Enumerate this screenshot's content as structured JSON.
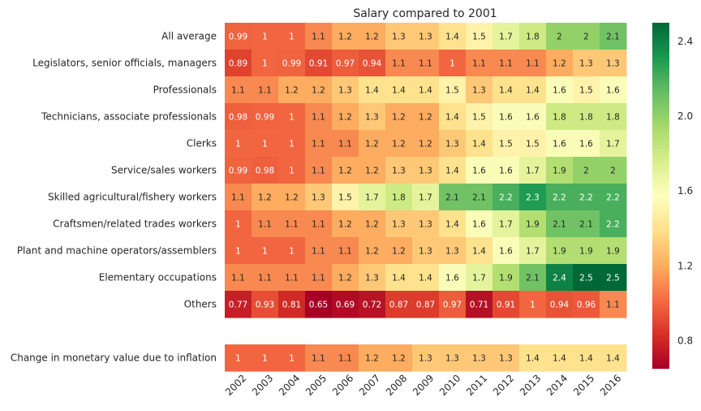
{
  "chart_data": {
    "type": "heatmap",
    "title": "Salary compared to 2001",
    "x": [
      "2002",
      "2003",
      "2004",
      "2005",
      "2006",
      "2007",
      "2008",
      "2009",
      "2010",
      "2011",
      "2012",
      "2013",
      "2014",
      "2015",
      "2016"
    ],
    "rows": [
      {
        "label": "All average",
        "values": [
          0.99,
          1.0,
          1.0,
          1.1,
          1.2,
          1.2,
          1.3,
          1.3,
          1.4,
          1.5,
          1.7,
          1.8,
          2.0,
          2.0,
          2.1
        ],
        "display": [
          "0.99",
          "1",
          "1",
          "1.1",
          "1.2",
          "1.2",
          "1.3",
          "1.3",
          "1.4",
          "1.5",
          "1.7",
          "1.8",
          "2",
          "2",
          "2.1"
        ]
      },
      {
        "label": "Legislators, senior officials, managers",
        "values": [
          0.89,
          1.0,
          0.99,
          0.91,
          0.97,
          0.94,
          1.1,
          1.1,
          1.0,
          1.1,
          1.1,
          1.1,
          1.2,
          1.3,
          1.3
        ],
        "display": [
          "0.89",
          "1",
          "0.99",
          "0.91",
          "0.97",
          "0.94",
          "1.1",
          "1.1",
          "1",
          "1.1",
          "1.1",
          "1.1",
          "1.2",
          "1.3",
          "1.3"
        ]
      },
      {
        "label": "Professionals",
        "values": [
          1.1,
          1.1,
          1.2,
          1.2,
          1.3,
          1.4,
          1.4,
          1.4,
          1.5,
          1.3,
          1.4,
          1.4,
          1.6,
          1.5,
          1.6
        ],
        "display": [
          "1.1",
          "1.1",
          "1.2",
          "1.2",
          "1.3",
          "1.4",
          "1.4",
          "1.4",
          "1.5",
          "1.3",
          "1.4",
          "1.4",
          "1.6",
          "1.5",
          "1.6"
        ]
      },
      {
        "label": "Technicians, associate professionals",
        "values": [
          0.98,
          0.99,
          1.0,
          1.1,
          1.2,
          1.3,
          1.2,
          1.2,
          1.4,
          1.5,
          1.6,
          1.6,
          1.8,
          1.8,
          1.8
        ],
        "display": [
          "0.98",
          "0.99",
          "1",
          "1.1",
          "1.2",
          "1.3",
          "1.2",
          "1.2",
          "1.4",
          "1.5",
          "1.6",
          "1.6",
          "1.8",
          "1.8",
          "1.8"
        ]
      },
      {
        "label": "Clerks",
        "values": [
          1.0,
          1.0,
          1.0,
          1.1,
          1.1,
          1.2,
          1.2,
          1.2,
          1.3,
          1.4,
          1.5,
          1.5,
          1.6,
          1.6,
          1.7
        ],
        "display": [
          "1",
          "1",
          "1",
          "1.1",
          "1.1",
          "1.2",
          "1.2",
          "1.2",
          "1.3",
          "1.4",
          "1.5",
          "1.5",
          "1.6",
          "1.6",
          "1.7"
        ]
      },
      {
        "label": "Service/sales workers",
        "values": [
          0.99,
          0.98,
          1.0,
          1.1,
          1.2,
          1.2,
          1.3,
          1.3,
          1.4,
          1.6,
          1.6,
          1.7,
          1.9,
          2.0,
          2.0
        ],
        "display": [
          "0.99",
          "0.98",
          "1",
          "1.1",
          "1.2",
          "1.2",
          "1.3",
          "1.3",
          "1.4",
          "1.6",
          "1.6",
          "1.7",
          "1.9",
          "2",
          "2"
        ]
      },
      {
        "label": "Skilled agricultural/fishery workers",
        "values": [
          1.1,
          1.2,
          1.2,
          1.3,
          1.5,
          1.7,
          1.8,
          1.7,
          2.1,
          2.1,
          2.2,
          2.3,
          2.2,
          2.2,
          2.2
        ],
        "display": [
          "1.1",
          "1.2",
          "1.2",
          "1.3",
          "1.5",
          "1.7",
          "1.8",
          "1.7",
          "2.1",
          "2.1",
          "2.2",
          "2.3",
          "2.2",
          "2.2",
          "2.2"
        ]
      },
      {
        "label": "Craftsmen/related trades workers",
        "values": [
          1.0,
          1.1,
          1.1,
          1.1,
          1.2,
          1.2,
          1.3,
          1.3,
          1.4,
          1.6,
          1.7,
          1.9,
          2.1,
          2.1,
          2.2
        ],
        "display": [
          "1",
          "1.1",
          "1.1",
          "1.1",
          "1.2",
          "1.2",
          "1.3",
          "1.3",
          "1.4",
          "1.6",
          "1.7",
          "1.9",
          "2.1",
          "2.1",
          "2.2"
        ]
      },
      {
        "label": "Plant and machine operators/assemblers",
        "values": [
          1.0,
          1.0,
          1.0,
          1.1,
          1.1,
          1.2,
          1.2,
          1.3,
          1.3,
          1.4,
          1.6,
          1.7,
          1.9,
          1.9,
          1.9
        ],
        "display": [
          "1",
          "1",
          "1",
          "1.1",
          "1.1",
          "1.2",
          "1.2",
          "1.3",
          "1.3",
          "1.4",
          "1.6",
          "1.7",
          "1.9",
          "1.9",
          "1.9"
        ]
      },
      {
        "label": "Elementary occupations",
        "values": [
          1.1,
          1.1,
          1.1,
          1.1,
          1.2,
          1.3,
          1.4,
          1.4,
          1.6,
          1.7,
          1.9,
          2.1,
          2.4,
          2.5,
          2.5
        ],
        "display": [
          "1.1",
          "1.1",
          "1.1",
          "1.1",
          "1.2",
          "1.3",
          "1.4",
          "1.4",
          "1.6",
          "1.7",
          "1.9",
          "2.1",
          "2.4",
          "2.5",
          "2.5"
        ]
      },
      {
        "label": "Others",
        "values": [
          0.77,
          0.93,
          0.81,
          0.65,
          0.69,
          0.72,
          0.87,
          0.87,
          0.97,
          0.71,
          0.91,
          1.0,
          0.94,
          0.96,
          1.1
        ],
        "display": [
          "0.77",
          "0.93",
          "0.81",
          "0.65",
          "0.69",
          "0.72",
          "0.87",
          "0.87",
          "0.97",
          "0.71",
          "0.91",
          "1",
          "0.94",
          "0.96",
          "1.1"
        ]
      },
      {
        "label": "",
        "values": [
          null,
          null,
          null,
          null,
          null,
          null,
          null,
          null,
          null,
          null,
          null,
          null,
          null,
          null,
          null
        ],
        "display": [
          "",
          "",
          "",
          "",
          "",
          "",
          "",
          "",
          "",
          "",
          "",
          "",
          "",
          "",
          ""
        ]
      },
      {
        "label": "Change in monetary value due to inflation",
        "values": [
          1.0,
          1.0,
          1.0,
          1.1,
          1.1,
          1.2,
          1.2,
          1.3,
          1.3,
          1.3,
          1.3,
          1.4,
          1.4,
          1.4,
          1.4
        ],
        "display": [
          "1",
          "1",
          "1",
          "1.1",
          "1.1",
          "1.2",
          "1.2",
          "1.3",
          "1.3",
          "1.3",
          "1.3",
          "1.4",
          "1.4",
          "1.4",
          "1.4"
        ]
      }
    ],
    "colormap": "RdYlGn",
    "vmin": 0.65,
    "vmax": 2.5,
    "colorbar_ticks": [
      0.8,
      1.2,
      1.6,
      2.0,
      2.4
    ],
    "colorbar_tick_labels": [
      "0.8",
      "1.2",
      "1.6",
      "2.0",
      "2.4"
    ]
  }
}
